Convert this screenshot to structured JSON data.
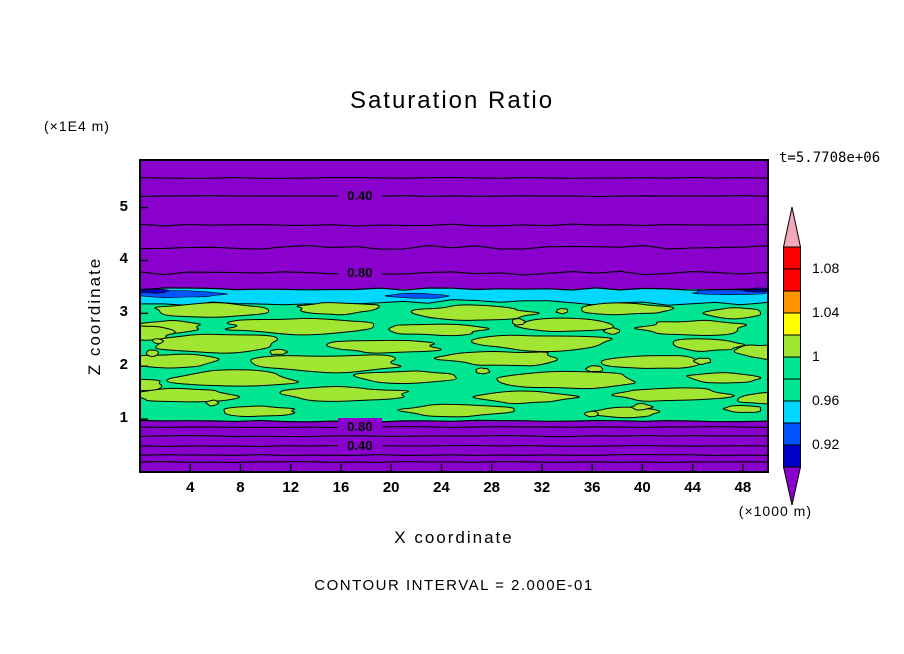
{
  "title": "Saturation Ratio",
  "time_label": "t=5.7708e+06",
  "axes": {
    "x_label": "X coordinate",
    "x_unit": "(×1000 m)",
    "y_label": "Z coordinate",
    "y_unit": "(×1E4 m)"
  },
  "footer": {
    "contour_interval_text": "CONTOUR INTERVAL = 2.000E-01"
  },
  "chart_data": {
    "type": "contour",
    "title": "Saturation Ratio",
    "xlabel": "X coordinate",
    "ylabel": "Z coordinate",
    "x_unit": "(×1000 m)",
    "y_unit": "(×1E4 m)",
    "time_annotation": "t=5.7708e+06",
    "contour_interval": "2.000E-01",
    "xlim": [
      0,
      50
    ],
    "ylim": [
      0,
      5.9
    ],
    "x_ticks": [
      4,
      8,
      12,
      16,
      20,
      24,
      28,
      32,
      36,
      40,
      44,
      48
    ],
    "y_ticks": [
      1,
      2,
      3,
      4,
      5
    ],
    "grid": false,
    "labeled_contours": [
      {
        "value": "0.40",
        "z": 5.22,
        "x_frac": 0.35
      },
      {
        "value": "0.80",
        "z": 3.76,
        "x_frac": 0.35
      },
      {
        "value": "0.80",
        "z": 0.85,
        "x_frac": 0.35
      },
      {
        "value": "0.40",
        "z": 0.49,
        "x_frac": 0.35
      }
    ],
    "contour_lines": {
      "upper_region_z": [
        5.56,
        5.22,
        4.67,
        4.25,
        3.76
      ],
      "lower_region_z": [
        0.85,
        0.68,
        0.49,
        0.32,
        0.19
      ],
      "band_z_range": [
        0.96,
        3.46
      ],
      "cyan_layer_z_range": [
        3.2,
        3.46
      ]
    },
    "field": {
      "background_color": "#8A00CD",
      "band_color": "#00E591",
      "blob_color": "#A0E632",
      "cyan_layer_color": "#00D8FF",
      "blue_layer_color": "#0055FF",
      "navy_layer_color": "#0000C8"
    },
    "colorbar": {
      "position": "right",
      "labels": [
        "1.08",
        "1.04",
        "1",
        "0.96",
        "0.92"
      ],
      "box_colors": [
        "#FF0000",
        "#FF0000",
        "#FF9600",
        "#FFFF00",
        "#A0E632",
        "#00E591",
        "#00E591",
        "#00D8FF",
        "#0055FF",
        "#0000C8"
      ],
      "arrow_top_color": "#F4A7B9",
      "arrow_bottom_color": "#8A00CD"
    }
  }
}
